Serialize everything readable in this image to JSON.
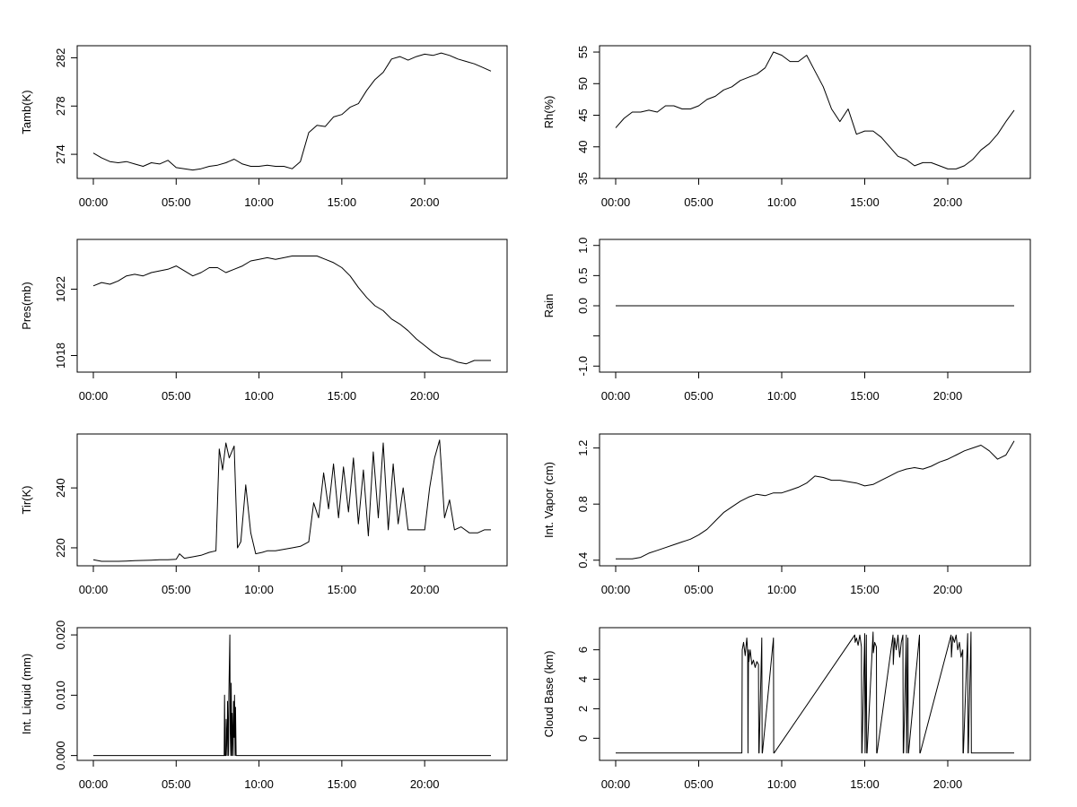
{
  "chart_data": [
    {
      "type": "line",
      "ylabel": "Tamb(K)",
      "xlim": [
        0,
        24
      ],
      "ylim": [
        272,
        283
      ],
      "yticks": [
        274,
        278,
        282
      ],
      "xticks": [
        0,
        5,
        10,
        15,
        20
      ],
      "xticklabels": [
        "00:00",
        "05:00",
        "10:00",
        "15:00",
        "20:00"
      ],
      "series": [
        {
          "x": [
            0.0,
            0.5,
            1.0,
            1.5,
            2.0,
            2.5,
            3.0,
            3.5,
            4.0,
            4.5,
            5.0,
            5.5,
            6.0,
            6.5,
            7.0,
            7.5,
            8.0,
            8.5,
            9.0,
            9.5,
            10.0,
            10.5,
            11.0,
            11.5,
            12.0,
            12.5,
            13.0,
            13.5,
            14.0,
            14.5,
            15.0,
            15.5,
            16.0,
            16.5,
            17.0,
            17.5,
            18.0,
            18.5,
            19.0,
            19.5,
            20.0,
            20.5,
            21.0,
            21.5,
            22.0,
            22.5,
            23.0,
            23.5,
            24.0
          ],
          "y": [
            274.1,
            273.7,
            273.4,
            273.3,
            273.4,
            273.2,
            273.0,
            273.3,
            273.2,
            273.5,
            272.9,
            272.8,
            272.7,
            272.8,
            273.0,
            273.1,
            273.3,
            273.6,
            273.2,
            273.0,
            273.0,
            273.1,
            273.0,
            273.0,
            272.8,
            273.4,
            275.8,
            276.4,
            276.3,
            277.1,
            277.3,
            277.9,
            278.2,
            279.3,
            280.2,
            280.8,
            281.9,
            282.1,
            281.8,
            282.1,
            282.3,
            282.2,
            282.4,
            282.2,
            281.9,
            281.7,
            281.5,
            281.2,
            280.9
          ]
        }
      ]
    },
    {
      "type": "line",
      "ylabel": "Rh(%)",
      "xlim": [
        0,
        24
      ],
      "ylim": [
        35,
        56
      ],
      "yticks": [
        35,
        40,
        45,
        50,
        55
      ],
      "xticks": [
        0,
        5,
        10,
        15,
        20
      ],
      "xticklabels": [
        "00:00",
        "05:00",
        "10:00",
        "15:00",
        "20:00"
      ],
      "series": [
        {
          "x": [
            0.0,
            0.5,
            1.0,
            1.5,
            2.0,
            2.5,
            3.0,
            3.5,
            4.0,
            4.5,
            5.0,
            5.5,
            6.0,
            6.5,
            7.0,
            7.5,
            8.0,
            8.5,
            9.0,
            9.5,
            10.0,
            10.5,
            11.0,
            11.5,
            12.0,
            12.5,
            13.0,
            13.5,
            14.0,
            14.5,
            15.0,
            15.5,
            16.0,
            16.5,
            17.0,
            17.5,
            18.0,
            18.5,
            19.0,
            19.5,
            20.0,
            20.5,
            21.0,
            21.5,
            22.0,
            22.5,
            23.0,
            23.5,
            24.0
          ],
          "y": [
            43.0,
            44.5,
            45.5,
            45.5,
            45.8,
            45.5,
            46.5,
            46.5,
            46.0,
            46.0,
            46.5,
            47.5,
            48.0,
            49.0,
            49.5,
            50.5,
            51.0,
            51.5,
            52.5,
            55.0,
            54.5,
            53.5,
            53.5,
            54.5,
            52.0,
            49.5,
            46.0,
            44.0,
            46.0,
            42.0,
            42.5,
            42.5,
            41.5,
            40.0,
            38.5,
            38.0,
            37.0,
            37.5,
            37.5,
            37.0,
            36.5,
            36.5,
            37.0,
            38.0,
            39.5,
            40.5,
            42.0,
            44.0,
            45.8
          ]
        }
      ]
    },
    {
      "type": "line",
      "ylabel": "Pres(mb)",
      "xlim": [
        0,
        24
      ],
      "ylim": [
        1017,
        1025
      ],
      "yticks": [
        1018,
        1022
      ],
      "xticks": [
        0,
        5,
        10,
        15,
        20
      ],
      "xticklabels": [
        "00:00",
        "05:00",
        "10:00",
        "15:00",
        "20:00"
      ],
      "series": [
        {
          "x": [
            0.0,
            0.5,
            1.0,
            1.5,
            2.0,
            2.5,
            3.0,
            3.5,
            4.0,
            4.5,
            5.0,
            5.5,
            6.0,
            6.5,
            7.0,
            7.5,
            8.0,
            8.5,
            9.0,
            9.5,
            10.0,
            10.5,
            11.0,
            11.5,
            12.0,
            12.5,
            13.0,
            13.5,
            14.0,
            14.5,
            15.0,
            15.5,
            16.0,
            16.5,
            17.0,
            17.5,
            18.0,
            18.5,
            19.0,
            19.5,
            20.0,
            20.5,
            21.0,
            21.5,
            22.0,
            22.5,
            23.0,
            23.5,
            24.0
          ],
          "y": [
            1022.2,
            1022.4,
            1022.3,
            1022.5,
            1022.8,
            1022.9,
            1022.8,
            1023.0,
            1023.1,
            1023.2,
            1023.4,
            1023.1,
            1022.8,
            1023.0,
            1023.3,
            1023.3,
            1023.0,
            1023.2,
            1023.4,
            1023.7,
            1023.8,
            1023.9,
            1023.8,
            1023.9,
            1024.0,
            1024.0,
            1024.0,
            1024.0,
            1023.8,
            1023.6,
            1023.3,
            1022.8,
            1022.1,
            1021.5,
            1021.0,
            1020.7,
            1020.2,
            1019.9,
            1019.5,
            1019.0,
            1018.6,
            1018.2,
            1017.9,
            1017.8,
            1017.6,
            1017.5,
            1017.7,
            1017.7,
            1017.7
          ]
        }
      ]
    },
    {
      "type": "line",
      "ylabel": "Rain",
      "xlim": [
        0,
        24
      ],
      "ylim": [
        -1.1,
        1.1
      ],
      "yticks": [
        -1.0,
        -0.5,
        0.0,
        0.5,
        1.0
      ],
      "yticklabels": [
        "-1.0",
        "",
        "0.0",
        "0.5",
        "1.0"
      ],
      "xticks": [
        0,
        5,
        10,
        15,
        20
      ],
      "xticklabels": [
        "00:00",
        "05:00",
        "10:00",
        "15:00",
        "20:00"
      ],
      "series": [
        {
          "x": [
            0,
            24
          ],
          "y": [
            0,
            0
          ]
        }
      ]
    },
    {
      "type": "line",
      "ylabel": "Tir(K)",
      "xlim": [
        0,
        24
      ],
      "ylim": [
        214,
        258
      ],
      "yticks": [
        220,
        240
      ],
      "xticks": [
        0,
        5,
        10,
        15,
        20
      ],
      "xticklabels": [
        "00:00",
        "05:00",
        "10:00",
        "15:00",
        "20:00"
      ],
      "series": [
        {
          "x": [
            0.0,
            0.5,
            1.0,
            1.5,
            2.0,
            2.5,
            3.0,
            3.5,
            4.0,
            4.5,
            5.0,
            5.2,
            5.5,
            6.0,
            6.5,
            7.0,
            7.4,
            7.6,
            7.8,
            8.0,
            8.2,
            8.5,
            8.7,
            8.9,
            9.2,
            9.5,
            9.8,
            10.2,
            10.5,
            11.0,
            11.5,
            12.0,
            12.5,
            13.0,
            13.3,
            13.6,
            13.9,
            14.2,
            14.5,
            14.8,
            15.1,
            15.4,
            15.7,
            16.0,
            16.3,
            16.6,
            16.9,
            17.2,
            17.5,
            17.8,
            18.1,
            18.4,
            18.7,
            19.0,
            19.5,
            20.0,
            20.3,
            20.6,
            20.9,
            21.2,
            21.5,
            21.8,
            22.2,
            22.7,
            23.2,
            23.6,
            24.0
          ],
          "y": [
            216,
            215.5,
            215.5,
            215.5,
            215.6,
            215.7,
            215.8,
            215.9,
            216,
            216,
            216.2,
            218,
            216.5,
            217,
            217.5,
            218.5,
            219,
            253,
            246,
            255,
            250,
            254,
            220,
            222,
            241,
            225,
            218,
            218.5,
            219,
            219,
            219.5,
            220,
            220.5,
            222,
            235,
            230,
            245,
            233,
            248,
            230,
            247,
            232,
            250,
            228,
            246,
            224,
            252,
            230,
            255,
            226,
            248,
            228,
            240,
            226,
            226,
            226,
            240,
            250,
            256,
            230,
            236,
            226,
            227,
            225,
            225,
            226,
            226
          ]
        }
      ]
    },
    {
      "type": "line",
      "ylabel": "Int. Vapor (cm)",
      "xlim": [
        0,
        24
      ],
      "ylim": [
        0.36,
        1.3
      ],
      "yticks": [
        0.4,
        0.8,
        1.2
      ],
      "xticks": [
        0,
        5,
        10,
        15,
        20
      ],
      "xticklabels": [
        "00:00",
        "05:00",
        "10:00",
        "15:00",
        "20:00"
      ],
      "series": [
        {
          "x": [
            0.0,
            0.5,
            1.0,
            1.5,
            2.0,
            2.5,
            3.0,
            3.5,
            4.0,
            4.5,
            5.0,
            5.5,
            6.0,
            6.5,
            7.0,
            7.5,
            8.0,
            8.5,
            9.0,
            9.5,
            10.0,
            10.5,
            11.0,
            11.5,
            12.0,
            12.5,
            13.0,
            13.5,
            14.0,
            14.5,
            15.0,
            15.5,
            16.0,
            16.5,
            17.0,
            17.5,
            18.0,
            18.5,
            19.0,
            19.5,
            20.0,
            20.5,
            21.0,
            21.5,
            22.0,
            22.5,
            23.0,
            23.5,
            24.0
          ],
          "y": [
            0.41,
            0.41,
            0.41,
            0.42,
            0.45,
            0.47,
            0.49,
            0.51,
            0.53,
            0.55,
            0.58,
            0.62,
            0.68,
            0.74,
            0.78,
            0.82,
            0.85,
            0.87,
            0.86,
            0.88,
            0.88,
            0.9,
            0.92,
            0.95,
            1.0,
            0.99,
            0.97,
            0.97,
            0.96,
            0.95,
            0.93,
            0.94,
            0.97,
            1.0,
            1.03,
            1.05,
            1.06,
            1.05,
            1.07,
            1.1,
            1.12,
            1.15,
            1.18,
            1.2,
            1.22,
            1.18,
            1.12,
            1.15,
            1.25
          ]
        }
      ]
    },
    {
      "type": "line",
      "ylabel": "Int. Liquid (mm)",
      "xlim": [
        0,
        24
      ],
      "ylim": [
        -0.0008,
        0.0212
      ],
      "yticks": [
        0.0,
        0.01,
        0.02
      ],
      "yticklabels": [
        "0.000",
        "0.010",
        "0.020"
      ],
      "xticks": [
        0,
        5,
        10,
        15,
        20
      ],
      "xticklabels": [
        "00:00",
        "05:00",
        "10:00",
        "15:00",
        "20:00"
      ],
      "series": [
        {
          "x": [
            0,
            7.9,
            7.92,
            7.95,
            8.0,
            8.02,
            8.08,
            8.1,
            8.16,
            8.18,
            8.24,
            8.26,
            8.3,
            8.32,
            8.36,
            8.38,
            8.44,
            8.46,
            8.5,
            8.52,
            8.56,
            8.58,
            8.62,
            8.64,
            24
          ],
          "y": [
            0,
            0,
            0.01,
            0,
            0,
            0.006,
            0,
            0.009,
            0,
            0.01,
            0.02,
            0.004,
            0,
            0.012,
            0,
            0.007,
            0,
            0.009,
            0.003,
            0.01,
            0,
            0.008,
            0,
            0,
            0
          ]
        }
      ]
    },
    {
      "type": "line",
      "ylabel": "Cloud Base (km)",
      "xlim": [
        0,
        24
      ],
      "ylim": [
        -1.5,
        7.5
      ],
      "yticks": [
        0,
        2,
        4,
        6
      ],
      "xticks": [
        0,
        5,
        10,
        15,
        20
      ],
      "xticklabels": [
        "00:00",
        "05:00",
        "10:00",
        "15:00",
        "20:00"
      ],
      "series": [
        {
          "x": [
            0,
            7.6,
            7.62,
            7.7,
            7.8,
            7.9,
            7.95,
            7.97,
            8.0,
            8.02,
            8.1,
            8.2,
            8.3,
            8.4,
            8.5,
            8.6,
            8.62,
            8.64,
            8.8,
            8.82,
            8.84,
            9.5,
            9.52,
            9.54,
            14.4,
            14.42,
            14.5,
            14.6,
            14.7,
            14.8,
            14.82,
            14.84,
            15.0,
            15.02,
            15.1,
            15.12,
            15.14,
            15.5,
            15.52,
            15.6,
            15.7,
            15.72,
            15.74,
            16.7,
            16.72,
            16.8,
            16.9,
            17.0,
            17.1,
            17.2,
            17.3,
            17.32,
            17.34,
            17.5,
            17.52,
            17.6,
            17.62,
            17.64,
            18.3,
            18.32,
            18.34,
            20.2,
            20.22,
            20.3,
            20.4,
            20.5,
            20.6,
            20.7,
            20.8,
            20.9,
            20.92,
            20.94,
            21.2,
            21.22,
            21.24,
            21.4,
            21.42,
            21.44,
            24
          ],
          "y": [
            -1,
            -1,
            6.0,
            6.5,
            5.6,
            6.8,
            5.8,
            -1,
            6.0,
            5.2,
            6.0,
            5.0,
            5.3,
            4.8,
            5.2,
            5.0,
            -1,
            -1,
            6.8,
            -1,
            -1,
            6.8,
            -1,
            -1,
            7.0,
            6.5,
            6.8,
            6.3,
            7.0,
            6.2,
            -1,
            -1,
            7.1,
            -1,
            7.0,
            -1,
            -1,
            7.2,
            5.8,
            6.5,
            6.2,
            -1,
            -1,
            7.0,
            5.0,
            6.8,
            6.0,
            7.0,
            5.5,
            6.5,
            7.0,
            -1,
            -1,
            7.0,
            -1,
            6.8,
            -1,
            -1,
            7.0,
            -1,
            -1,
            7.0,
            5.5,
            6.9,
            6.5,
            7.0,
            6.0,
            6.5,
            5.5,
            6.0,
            -1,
            -1,
            7.1,
            -1,
            -1,
            7.2,
            -1,
            -1,
            -1
          ]
        }
      ]
    }
  ]
}
